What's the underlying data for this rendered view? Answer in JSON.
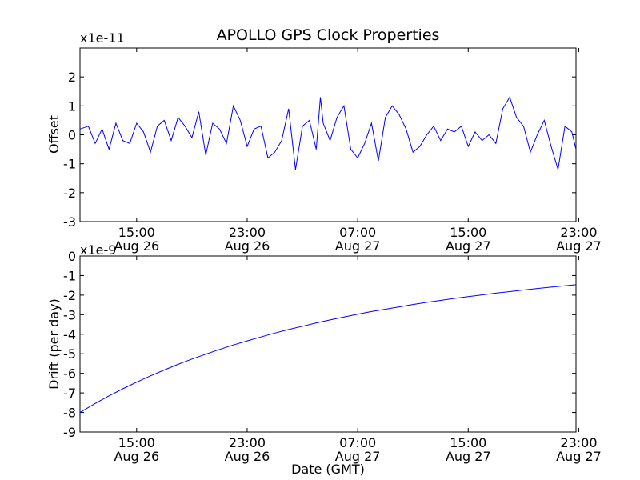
{
  "title": "APOLLO GPS Clock Properties",
  "colors": {
    "line": "#0000ff",
    "axis": "#000000",
    "background": "#ffffff"
  },
  "chart_data": [
    {
      "type": "line",
      "id": "offset",
      "ylabel": "Offset",
      "xlabel": "",
      "scale_label": "x1e-11",
      "ylim": [
        -3,
        3
      ],
      "yticks": [
        -3,
        -2,
        -1,
        0,
        1,
        2
      ],
      "xlim": [
        10.9,
        46.8
      ],
      "xticks": [
        {
          "pos": 15,
          "time": "15:00",
          "date": "Aug 26"
        },
        {
          "pos": 23,
          "time": "23:00",
          "date": "Aug 26"
        },
        {
          "pos": 31,
          "time": "07:00",
          "date": "Aug 27"
        },
        {
          "pos": 39,
          "time": "15:00",
          "date": "Aug 27"
        },
        {
          "pos": 47,
          "time": "23:00",
          "date": "Aug 27"
        }
      ],
      "x_unit": "hours since Aug 26 00:00 GMT",
      "series": [
        {
          "name": "Offset",
          "x": [
            10.9,
            11.5,
            12.0,
            12.5,
            13.0,
            13.5,
            14.0,
            14.5,
            15.0,
            15.5,
            16.0,
            16.5,
            17.0,
            17.5,
            18.0,
            18.5,
            19.0,
            19.5,
            20.0,
            20.5,
            21.0,
            21.5,
            22.0,
            22.5,
            23.0,
            23.5,
            24.0,
            24.5,
            25.0,
            25.5,
            26.0,
            26.5,
            27.0,
            27.5,
            28.0,
            28.3,
            28.5,
            29.0,
            29.5,
            30.0,
            30.5,
            31.0,
            31.5,
            32.0,
            32.5,
            33.0,
            33.5,
            34.0,
            34.5,
            35.0,
            35.5,
            36.0,
            36.5,
            37.0,
            37.5,
            38.0,
            38.5,
            39.0,
            39.5,
            40.0,
            40.5,
            41.0,
            41.5,
            42.0,
            42.5,
            43.0,
            43.5,
            44.0,
            44.5,
            45.0,
            45.5,
            46.0,
            46.5,
            46.8
          ],
          "values": [
            0.2,
            0.3,
            -0.3,
            0.2,
            -0.5,
            0.4,
            -0.2,
            -0.3,
            0.4,
            0.1,
            -0.6,
            0.3,
            0.5,
            -0.2,
            0.6,
            0.3,
            -0.1,
            0.8,
            -0.7,
            0.4,
            0.2,
            -0.3,
            1.0,
            0.5,
            -0.4,
            0.2,
            0.3,
            -0.8,
            -0.6,
            -0.2,
            0.9,
            -1.2,
            0.3,
            0.5,
            -0.5,
            1.3,
            0.4,
            -0.2,
            0.6,
            1.0,
            -0.5,
            -0.8,
            -0.3,
            0.4,
            -0.9,
            0.6,
            1.0,
            0.7,
            0.2,
            -0.6,
            -0.4,
            0.0,
            0.3,
            -0.2,
            0.2,
            0.1,
            0.3,
            -0.4,
            0.1,
            -0.2,
            0.0,
            -0.3,
            0.9,
            1.3,
            0.6,
            0.3,
            -0.6,
            0.0,
            0.5,
            -0.4,
            -1.2,
            0.3,
            0.1,
            -0.5
          ]
        }
      ]
    },
    {
      "type": "line",
      "id": "drift",
      "ylabel": "Drift (per day)",
      "xlabel": "Date (GMT)",
      "scale_label": "x1e-9",
      "ylim": [
        -9,
        0
      ],
      "yticks": [
        -9,
        -8,
        -7,
        -6,
        -5,
        -4,
        -3,
        -2,
        -1,
        0
      ],
      "xlim": [
        10.9,
        46.8
      ],
      "xticks": [
        {
          "pos": 15,
          "time": "15:00",
          "date": "Aug 26"
        },
        {
          "pos": 23,
          "time": "23:00",
          "date": "Aug 26"
        },
        {
          "pos": 31,
          "time": "07:00",
          "date": "Aug 27"
        },
        {
          "pos": 39,
          "time": "15:00",
          "date": "Aug 27"
        },
        {
          "pos": 47,
          "time": "23:00",
          "date": "Aug 27"
        }
      ],
      "x_unit": "hours since Aug 26 00:00 GMT",
      "series": [
        {
          "name": "Drift",
          "x": [
            10.9,
            12,
            13,
            14,
            15,
            16,
            17,
            18,
            19,
            20,
            21,
            22,
            23,
            24,
            25,
            26,
            27,
            28,
            29,
            30,
            31,
            32,
            33,
            34,
            35,
            36,
            37,
            38,
            39,
            40,
            41,
            42,
            43,
            44,
            45,
            46,
            46.8
          ],
          "values": [
            -8.0,
            -7.54,
            -7.15,
            -6.79,
            -6.45,
            -6.13,
            -5.83,
            -5.54,
            -5.27,
            -5.02,
            -4.78,
            -4.55,
            -4.34,
            -4.14,
            -3.94,
            -3.76,
            -3.59,
            -3.42,
            -3.27,
            -3.12,
            -2.98,
            -2.84,
            -2.72,
            -2.6,
            -2.48,
            -2.37,
            -2.27,
            -2.17,
            -2.08,
            -1.99,
            -1.9,
            -1.82,
            -1.74,
            -1.66,
            -1.59,
            -1.52,
            -1.47
          ]
        }
      ]
    }
  ]
}
